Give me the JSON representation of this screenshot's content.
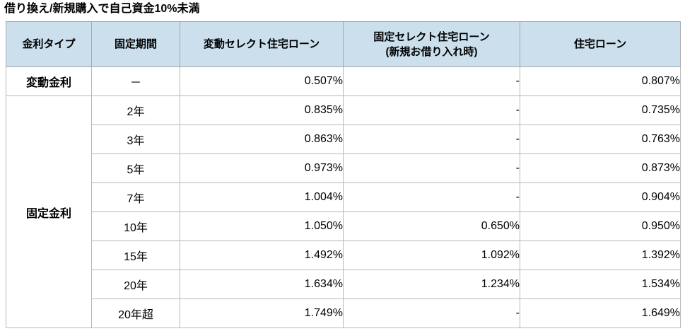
{
  "page": {
    "title": "借り換え/新規購入で自己資金10%未満"
  },
  "table": {
    "columns": [
      {
        "label": "金利タイプ"
      },
      {
        "label": "固定期間"
      },
      {
        "label": "変動セレクト住宅ローン"
      },
      {
        "label": "固定セレクト住宅ローン",
        "sublabel": "(新規お借り入れ時)"
      },
      {
        "label": "住宅ローン"
      }
    ],
    "groups": [
      {
        "type_label": "変動金利",
        "rows": [
          {
            "period": "－",
            "hendo_select": "0.507%",
            "kotei_select": "-",
            "jutaku_loan": "0.807%"
          }
        ]
      },
      {
        "type_label": "固定金利",
        "rows": [
          {
            "period": "2年",
            "hendo_select": "0.835%",
            "kotei_select": "-",
            "jutaku_loan": "0.735%"
          },
          {
            "period": "3年",
            "hendo_select": "0.863%",
            "kotei_select": "-",
            "jutaku_loan": "0.763%"
          },
          {
            "period": "5年",
            "hendo_select": "0.973%",
            "kotei_select": "-",
            "jutaku_loan": "0.873%"
          },
          {
            "period": "7年",
            "hendo_select": "1.004%",
            "kotei_select": "-",
            "jutaku_loan": "0.904%"
          },
          {
            "period": "10年",
            "hendo_select": "1.050%",
            "kotei_select": "0.650%",
            "jutaku_loan": "0.950%"
          },
          {
            "period": "15年",
            "hendo_select": "1.492%",
            "kotei_select": "1.092%",
            "jutaku_loan": "1.392%"
          },
          {
            "period": "20年",
            "hendo_select": "1.634%",
            "kotei_select": "1.234%",
            "jutaku_loan": "1.534%"
          },
          {
            "period": "20年超",
            "hendo_select": "1.749%",
            "kotei_select": "-",
            "jutaku_loan": "1.649%"
          }
        ]
      }
    ]
  },
  "colors": {
    "header_bg": "#cbdfec",
    "outer_border": "#a9a9a9",
    "inner_border": "#b7b7b7"
  },
  "chart_data": {
    "type": "table",
    "title": "借り換え/新規購入で自己資金10%未満",
    "columns": [
      "金利タイプ",
      "固定期間",
      "変動セレクト住宅ローン",
      "固定セレクト住宅ローン(新規お借り入れ時)",
      "住宅ローン"
    ],
    "rows": [
      [
        "変動金利",
        "－",
        "0.507%",
        "-",
        "0.807%"
      ],
      [
        "固定金利",
        "2年",
        "0.835%",
        "-",
        "0.735%"
      ],
      [
        "固定金利",
        "3年",
        "0.863%",
        "-",
        "0.763%"
      ],
      [
        "固定金利",
        "5年",
        "0.973%",
        "-",
        "0.873%"
      ],
      [
        "固定金利",
        "7年",
        "1.004%",
        "-",
        "0.904%"
      ],
      [
        "固定金利",
        "10年",
        "1.050%",
        "0.650%",
        "0.950%"
      ],
      [
        "固定金利",
        "15年",
        "1.492%",
        "1.092%",
        "1.392%"
      ],
      [
        "固定金利",
        "20年",
        "1.634%",
        "1.234%",
        "1.534%"
      ],
      [
        "固定金利",
        "20年超",
        "1.749%",
        "-",
        "1.649%"
      ]
    ]
  }
}
